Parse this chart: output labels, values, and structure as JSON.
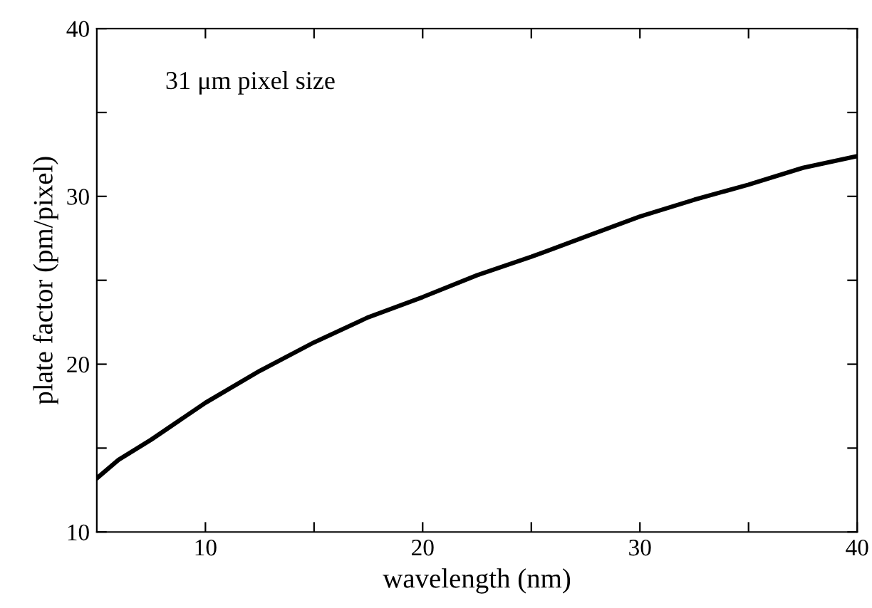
{
  "chart_data": {
    "type": "line",
    "xlabel": "wavelength (nm)",
    "ylabel": "plate factor (pm/pixel)",
    "annotations": [
      "31 μm pixel size"
    ],
    "x": [
      5,
      6,
      7.5,
      10,
      12.5,
      15,
      17.5,
      20,
      22.5,
      25,
      27.5,
      30,
      32.5,
      35,
      37.5,
      40
    ],
    "series": [
      {
        "color": "#000000",
        "values": [
          13.2,
          14.3,
          15.5,
          17.7,
          19.6,
          21.3,
          22.8,
          24.0,
          25.3,
          26.4,
          27.6,
          28.8,
          29.8,
          30.7,
          31.7,
          32.4
        ]
      }
    ],
    "xlim": [
      5,
      40
    ],
    "ylim": [
      10,
      40
    ],
    "xticks": [
      10,
      {
        "value": 15,
        "label": null
      },
      20,
      {
        "value": 25,
        "label": null
      },
      30,
      {
        "value": 35,
        "label": null
      },
      40
    ],
    "yticks": [
      10,
      {
        "value": 15,
        "label": null
      },
      20,
      {
        "value": 25,
        "label": null
      },
      30,
      {
        "value": 35,
        "label": null
      },
      40
    ],
    "grid": false,
    "legend": false,
    "marker": "none",
    "line_style": "solid"
  }
}
